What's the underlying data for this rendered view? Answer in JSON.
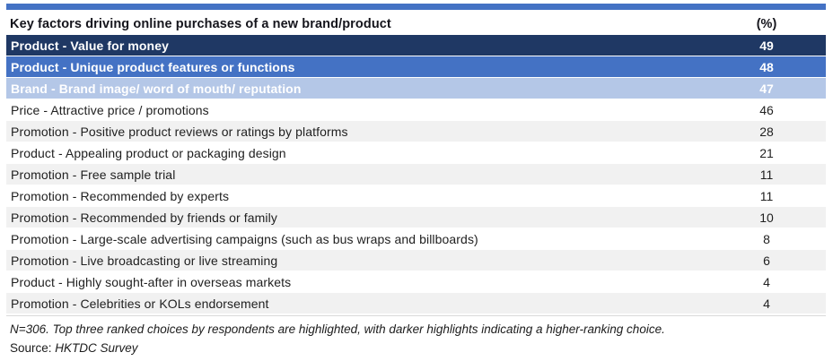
{
  "colors": {
    "top_bar": "#4472C4",
    "rank1_bg": "#1F3864",
    "rank2_bg": "#4472C4",
    "rank3_bg": "#B4C7E7",
    "zebra_bg": "#F1F1F1",
    "highlight_text": "#FFFFFF",
    "body_text": "#212121"
  },
  "chart_data": {
    "type": "table",
    "title": "Key factors driving online purchases of a new brand/product",
    "value_header": "(%)",
    "columns": [
      "Key factors driving online purchases of a new brand/product",
      "(%)"
    ],
    "rows": [
      {
        "label": "Product - Value for money",
        "value": 49,
        "highlight": "rank1"
      },
      {
        "label": "Product - Unique product features or functions",
        "value": 48,
        "highlight": "rank2"
      },
      {
        "label": "Brand - Brand image/ word of mouth/ reputation",
        "value": 47,
        "highlight": "rank3"
      },
      {
        "label": "Price - Attractive price / promotions",
        "value": 46,
        "highlight": null
      },
      {
        "label": "Promotion - Positive product reviews or ratings by platforms",
        "value": 28,
        "highlight": null
      },
      {
        "label": "Product - Appealing product or packaging design",
        "value": 21,
        "highlight": null
      },
      {
        "label": "Promotion - Free sample trial",
        "value": 11,
        "highlight": null
      },
      {
        "label": "Promotion - Recommended by experts",
        "value": 11,
        "highlight": null
      },
      {
        "label": "Promotion - Recommended by friends or family",
        "value": 10,
        "highlight": null
      },
      {
        "label": "Promotion - Large-scale advertising campaigns (such as bus wraps and billboards)",
        "value": 8,
        "highlight": null
      },
      {
        "label": "Promotion - Live broadcasting or live streaming",
        "value": 6,
        "highlight": null
      },
      {
        "label": "Product - Highly sought-after in overseas markets",
        "value": 4,
        "highlight": null
      },
      {
        "label": "Promotion - Celebrities or KOLs endorsement",
        "value": 4,
        "highlight": null
      }
    ],
    "footnote": "N=306. Top three ranked choices by respondents are highlighted, with darker highlights indicating a higher-ranking choice.",
    "source_label": "Source:",
    "source_value": "HKTDC Survey"
  }
}
